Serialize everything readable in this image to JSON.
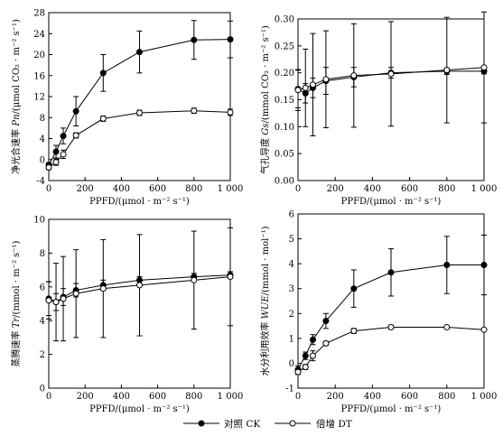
{
  "legend": {
    "ck_label": "对照 CK",
    "dt_label": "倍增 DT"
  },
  "colors": {
    "ink": "#000000",
    "open_fill": "#ffffff"
  },
  "chart_data": [
    {
      "type": "line",
      "id": "pn",
      "xlabel": "PPFD/(μmol · m⁻² s⁻¹)",
      "ylabel_main": "净光合速率",
      "ylabel_sym": "Pn",
      "ylabel_unit": "/(μmol CO₂ · m⁻² s⁻¹)",
      "xlim": [
        0,
        1000
      ],
      "ylim": [
        -4,
        28
      ],
      "xticks": [
        0,
        200,
        400,
        600,
        800,
        1000
      ],
      "xticklabels": [
        "0",
        "200",
        "400",
        "600",
        "800",
        "1 000"
      ],
      "yticks": [
        -4,
        0,
        4,
        8,
        12,
        16,
        20,
        24,
        28
      ],
      "yticklabels": [
        "-4",
        "0",
        "4",
        "8",
        "12",
        "16",
        "20",
        "24",
        "28"
      ],
      "x": [
        0,
        40,
        80,
        150,
        300,
        500,
        800,
        1000
      ],
      "series": [
        {
          "name": "对照 CK",
          "marker": "filled",
          "values": [
            -1.0,
            1.5,
            4.5,
            9.2,
            16.5,
            20.5,
            22.8,
            22.9
          ],
          "errors": [
            0.4,
            1.2,
            1.5,
            2.8,
            3.5,
            4.0,
            3.7,
            3.5
          ]
        },
        {
          "name": "倍增 DT",
          "marker": "open",
          "values": [
            -1.5,
            -0.5,
            1.0,
            4.6,
            7.8,
            8.9,
            9.3,
            9.0
          ],
          "errors": [
            0.4,
            0.6,
            0.8,
            0.5,
            0.5,
            0.5,
            0.5,
            0.6
          ]
        }
      ]
    },
    {
      "type": "line",
      "id": "gs",
      "xlabel": "PPFD/(μmol · m⁻² s⁻¹)",
      "ylabel_main": "气孔导度",
      "ylabel_sym": "Gs",
      "ylabel_unit": "/(mmol CO₂ · m⁻² s⁻¹)",
      "xlim": [
        0,
        1000
      ],
      "ylim": [
        0,
        0.3
      ],
      "xticks": [
        0,
        200,
        400,
        600,
        800,
        1000
      ],
      "xticklabels": [
        "0",
        "200",
        "400",
        "600",
        "800",
        "1 000"
      ],
      "yticks": [
        0,
        0.05,
        0.1,
        0.15,
        0.2,
        0.25,
        0.3
      ],
      "yticklabels": [
        "0.00",
        "0.05",
        "0.10",
        "0.15",
        "0.20",
        "0.25",
        "0.30"
      ],
      "x": [
        0,
        40,
        80,
        150,
        300,
        500,
        800,
        1000
      ],
      "series": [
        {
          "name": "对照 CK",
          "marker": "filled",
          "values": [
            0.17,
            0.162,
            0.172,
            0.185,
            0.192,
            0.2,
            0.203,
            0.203
          ],
          "errors": [
            0.035,
            0.018,
            0.018,
            0.025,
            0.018,
            0.01,
            0.006,
            0.005
          ]
        },
        {
          "name": "倍增 DT",
          "marker": "open",
          "values": [
            0.168,
            0.172,
            0.178,
            0.188,
            0.195,
            0.198,
            0.205,
            0.21
          ],
          "errors": [
            0.038,
            0.072,
            0.095,
            0.09,
            0.096,
            0.097,
            0.098,
            0.103
          ]
        }
      ]
    },
    {
      "type": "line",
      "id": "tr",
      "xlabel": "PPFD/(μmol · m⁻² s⁻¹)",
      "ylabel_main": "蒸腾速率",
      "ylabel_sym": "Tr",
      "ylabel_unit": "/(mmol · m⁻² s⁻¹)",
      "xlim": [
        0,
        1000
      ],
      "ylim": [
        0,
        10
      ],
      "xticks": [
        0,
        200,
        400,
        600,
        800,
        1000
      ],
      "xticklabels": [
        "0",
        "200",
        "400",
        "600",
        "800",
        "1 000"
      ],
      "yticks": [
        0,
        2,
        4,
        6,
        8,
        10
      ],
      "yticklabels": [
        "0",
        "2",
        "4",
        "6",
        "8",
        "10"
      ],
      "x": [
        0,
        40,
        80,
        150,
        300,
        500,
        800,
        1000
      ],
      "series": [
        {
          "name": "对照 CK",
          "marker": "filled",
          "values": [
            5.3,
            5.1,
            5.4,
            5.8,
            6.1,
            6.4,
            6.6,
            6.7
          ],
          "errors": [
            1.0,
            0.5,
            0.5,
            0.4,
            0.3,
            0.2,
            0.2,
            0.2
          ]
        },
        {
          "name": "倍增 DT",
          "marker": "open",
          "values": [
            5.2,
            5.1,
            5.3,
            5.6,
            5.9,
            6.1,
            6.4,
            6.6
          ],
          "errors": [
            1.1,
            2.3,
            2.5,
            2.6,
            2.9,
            3.0,
            2.9,
            2.9
          ]
        }
      ]
    },
    {
      "type": "line",
      "id": "wue",
      "xlabel": "PPFD/(μmol · m⁻² s⁻¹)",
      "ylabel_main": "水分利用效率",
      "ylabel_sym": "WUE",
      "ylabel_unit": "/(mmol · mol⁻¹)",
      "xlim": [
        0,
        1000
      ],
      "ylim": [
        -1,
        6
      ],
      "xticks": [
        0,
        200,
        400,
        600,
        800,
        1000
      ],
      "xticklabels": [
        "0",
        "200",
        "400",
        "600",
        "800",
        "1 000"
      ],
      "yticks": [
        -1,
        0,
        1,
        2,
        3,
        4,
        5,
        6
      ],
      "yticklabels": [
        "-1",
        "0",
        "1",
        "2",
        "3",
        "4",
        "5",
        "6"
      ],
      "x": [
        0,
        40,
        80,
        150,
        300,
        500,
        800,
        1000
      ],
      "series": [
        {
          "name": "对照 CK",
          "marker": "filled",
          "values": [
            -0.25,
            0.3,
            0.95,
            1.7,
            3.0,
            3.65,
            3.95,
            3.95
          ],
          "errors": [
            0.15,
            0.15,
            0.2,
            0.3,
            0.75,
            0.95,
            1.15,
            1.2
          ]
        },
        {
          "name": "倍增 DT",
          "marker": "open",
          "values": [
            -0.35,
            -0.15,
            0.3,
            0.8,
            1.3,
            1.45,
            1.45,
            1.35
          ],
          "errors": [
            0.1,
            0.1,
            0.2,
            0.08,
            0.1,
            0.08,
            0.05,
            0.05
          ]
        }
      ]
    }
  ]
}
